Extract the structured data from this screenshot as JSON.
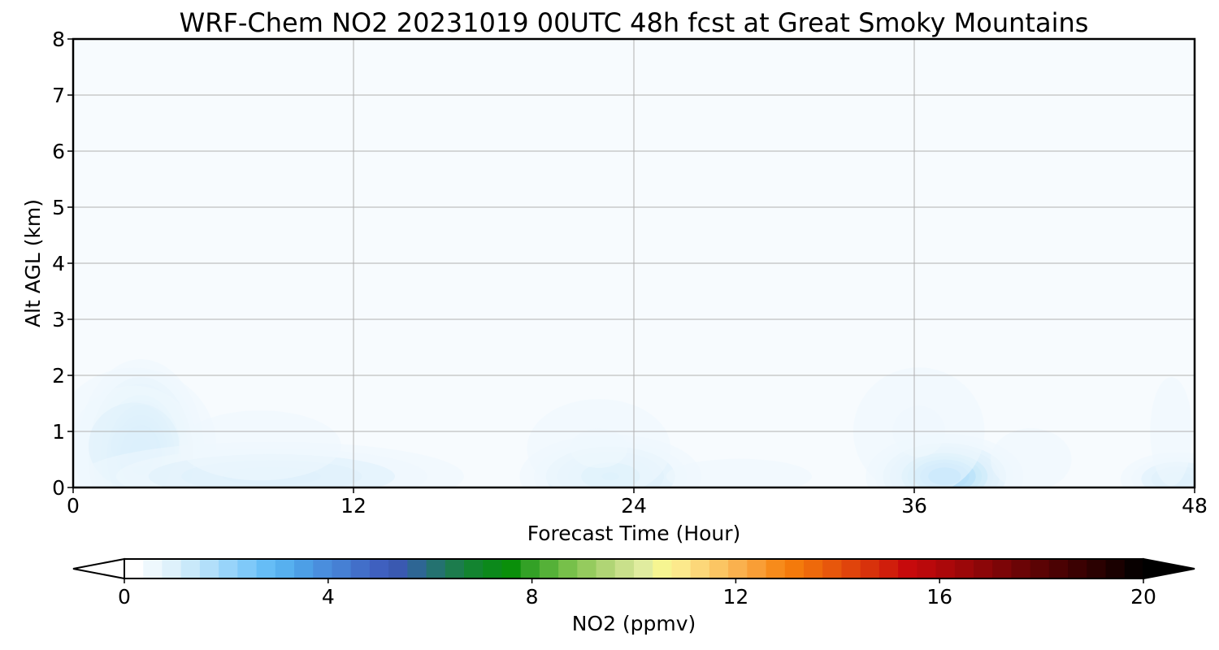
{
  "chart_data": {
    "type": "heatmap",
    "title": "WRF-Chem NO2  20231019 00UTC 48h fcst at Great Smoky Mountains",
    "xlabel": "Forecast Time (Hour)",
    "ylabel": "Alt AGL (km)",
    "xlim": [
      0,
      48
    ],
    "ylim": [
      0,
      8
    ],
    "xticks": [
      0,
      12,
      24,
      36,
      48
    ],
    "yticks": [
      0,
      1,
      2,
      3,
      4,
      5,
      6,
      7,
      8
    ],
    "grid": true,
    "field_units": "ppmv",
    "features": [
      {
        "x": 2.9,
        "y": 0.55,
        "rx": 1.5,
        "ry": 0.95,
        "peak": 3.0
      },
      {
        "x": 2.6,
        "y": 0.75,
        "rx": 2.8,
        "ry": 1.1,
        "peak": 1.0
      },
      {
        "x": 8.5,
        "y": 0.2,
        "rx": 6.0,
        "ry": 0.45,
        "peak": 1.2
      },
      {
        "x": 8.0,
        "y": 0.75,
        "rx": 5.0,
        "ry": 0.9,
        "peak": 0.5
      },
      {
        "x": 23.0,
        "y": 0.2,
        "rx": 2.6,
        "ry": 0.5,
        "peak": 1.5
      },
      {
        "x": 22.5,
        "y": 0.7,
        "rx": 3.5,
        "ry": 1.0,
        "peak": 0.6
      },
      {
        "x": 28.5,
        "y": 0.2,
        "rx": 4.5,
        "ry": 0.45,
        "peak": 0.5
      },
      {
        "x": 37.3,
        "y": 0.2,
        "rx": 2.0,
        "ry": 0.45,
        "peak": 2.2
      },
      {
        "x": 36.2,
        "y": 1.0,
        "rx": 3.2,
        "ry": 1.3,
        "peak": 0.6
      },
      {
        "x": 34.0,
        "y": 1.2,
        "rx": 6.0,
        "ry": 1.8,
        "peak": 0.35
      },
      {
        "x": 47.3,
        "y": 0.15,
        "rx": 1.8,
        "ry": 0.35,
        "peak": 1.2
      },
      {
        "x": 47.0,
        "y": 1.0,
        "rx": 1.3,
        "ry": 1.4,
        "peak": 0.5
      },
      {
        "x": 41.0,
        "y": 0.5,
        "rx": 2.5,
        "ry": 0.8,
        "peak": 0.5
      }
    ]
  },
  "colorbar": {
    "label": "NO2  (ppmv)",
    "min": 0,
    "max": 20,
    "ticks": [
      0,
      4,
      8,
      12,
      16,
      20
    ],
    "extend": "both",
    "colors": [
      "#ffffff",
      "#eef8fd",
      "#def1fb",
      "#c9e9fa",
      "#b2dffa",
      "#98d4fa",
      "#7fc9f9",
      "#66bdf6",
      "#57b0ef",
      "#4d9fe6",
      "#4a8edd",
      "#4680d4",
      "#426fc9",
      "#3f60bf",
      "#3a59b1",
      "#2e6694",
      "#247270",
      "#1c7c4d",
      "#138430",
      "#0c891b",
      "#0a8f0a",
      "#33a126",
      "#55b138",
      "#77c04a",
      "#95cb5e",
      "#b0d575",
      "#c9e08b",
      "#e0ec9f",
      "#f6f591",
      "#fce98c",
      "#fcd779",
      "#fbc563",
      "#fab14e",
      "#f99e36",
      "#f78b1b",
      "#f47a0c",
      "#ee690b",
      "#e7570c",
      "#e0440c",
      "#d8320c",
      "#d01e0c",
      "#c70a0c",
      "#ba090b",
      "#ab080a",
      "#9c0709",
      "#8c0608",
      "#7c0507",
      "#6b0406",
      "#5b0304",
      "#4b0203",
      "#3b0102",
      "#2b0101",
      "#1a0000",
      "#080000"
    ]
  }
}
